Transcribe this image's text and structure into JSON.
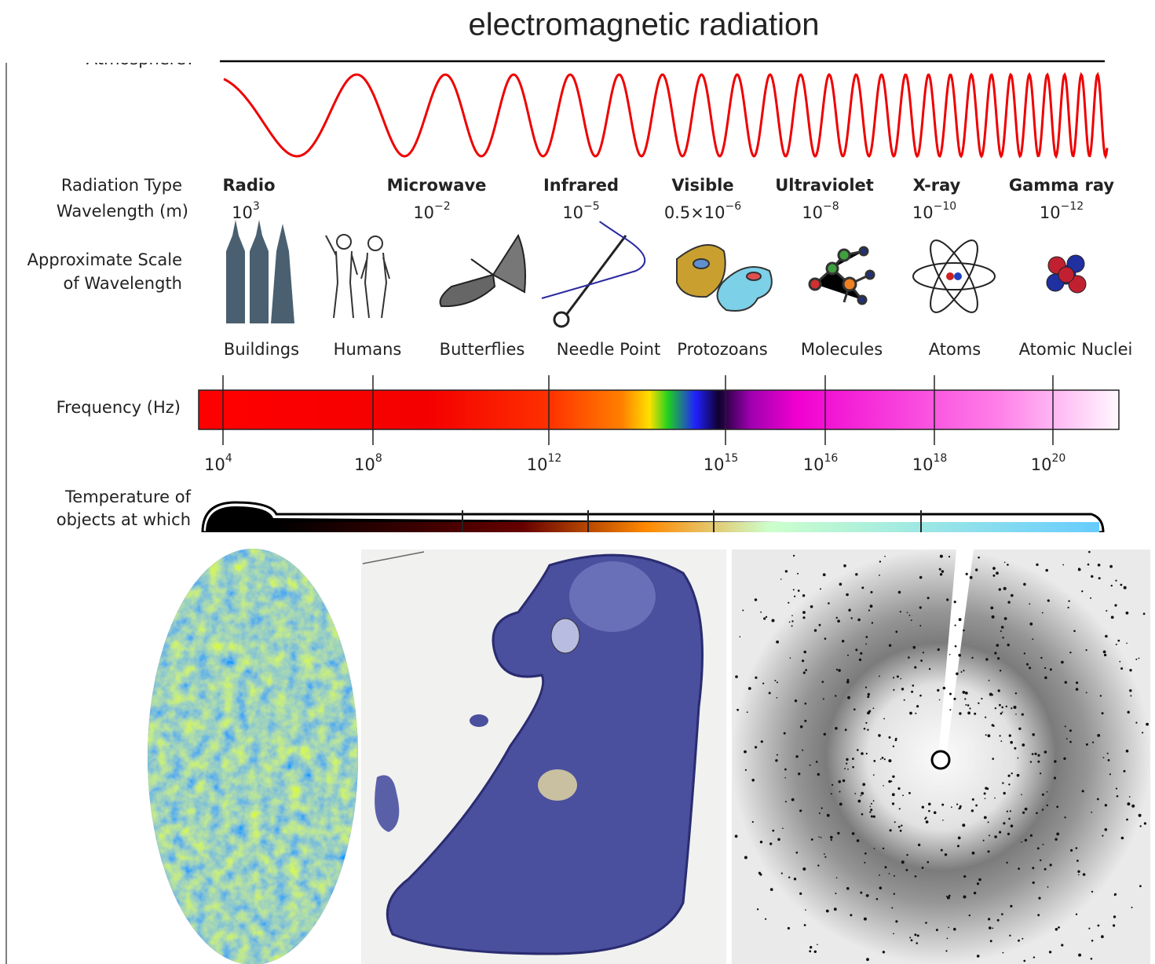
{
  "title": "electromagnetic radiation",
  "atmosphere_label": "Atmosphere?",
  "row_labels": {
    "radiation_type": "Radiation Type",
    "wavelength": "Wavelength (m)",
    "scale": [
      "Approximate Scale",
      "of Wavelength"
    ],
    "frequency": "Frequency (Hz)",
    "temperature": [
      "Temperature of",
      "objects at which"
    ]
  },
  "bands": [
    {
      "name": "Radio",
      "wavelength": {
        "base": "10",
        "exp": "3"
      }
    },
    {
      "name": "Microwave",
      "wavelength": {
        "base": "10",
        "exp": "−2"
      }
    },
    {
      "name": "Infrared",
      "wavelength": {
        "base": "10",
        "exp": "−5"
      }
    },
    {
      "name": "Visible",
      "wavelength": {
        "base": "0.5×10",
        "exp": "−6"
      }
    },
    {
      "name": "Ultraviolet",
      "wavelength": {
        "base": "10",
        "exp": "−8"
      }
    },
    {
      "name": "X-ray",
      "wavelength": {
        "base": "10",
        "exp": "−10"
      }
    },
    {
      "name": "Gamma ray",
      "wavelength": {
        "base": "10",
        "exp": "−12"
      }
    }
  ],
  "scales": [
    "Buildings",
    "Humans",
    "Butterflies",
    "Needle Point",
    "Protozoans",
    "Molecules",
    "Atoms",
    "Atomic Nuclei"
  ],
  "frequency_ticks": [
    {
      "base": "10",
      "exp": "4"
    },
    {
      "base": "10",
      "exp": "8"
    },
    {
      "base": "10",
      "exp": "12"
    },
    {
      "base": "10",
      "exp": "15"
    },
    {
      "base": "10",
      "exp": "16"
    },
    {
      "base": "10",
      "exp": "18"
    },
    {
      "base": "10",
      "exp": "20"
    }
  ]
}
